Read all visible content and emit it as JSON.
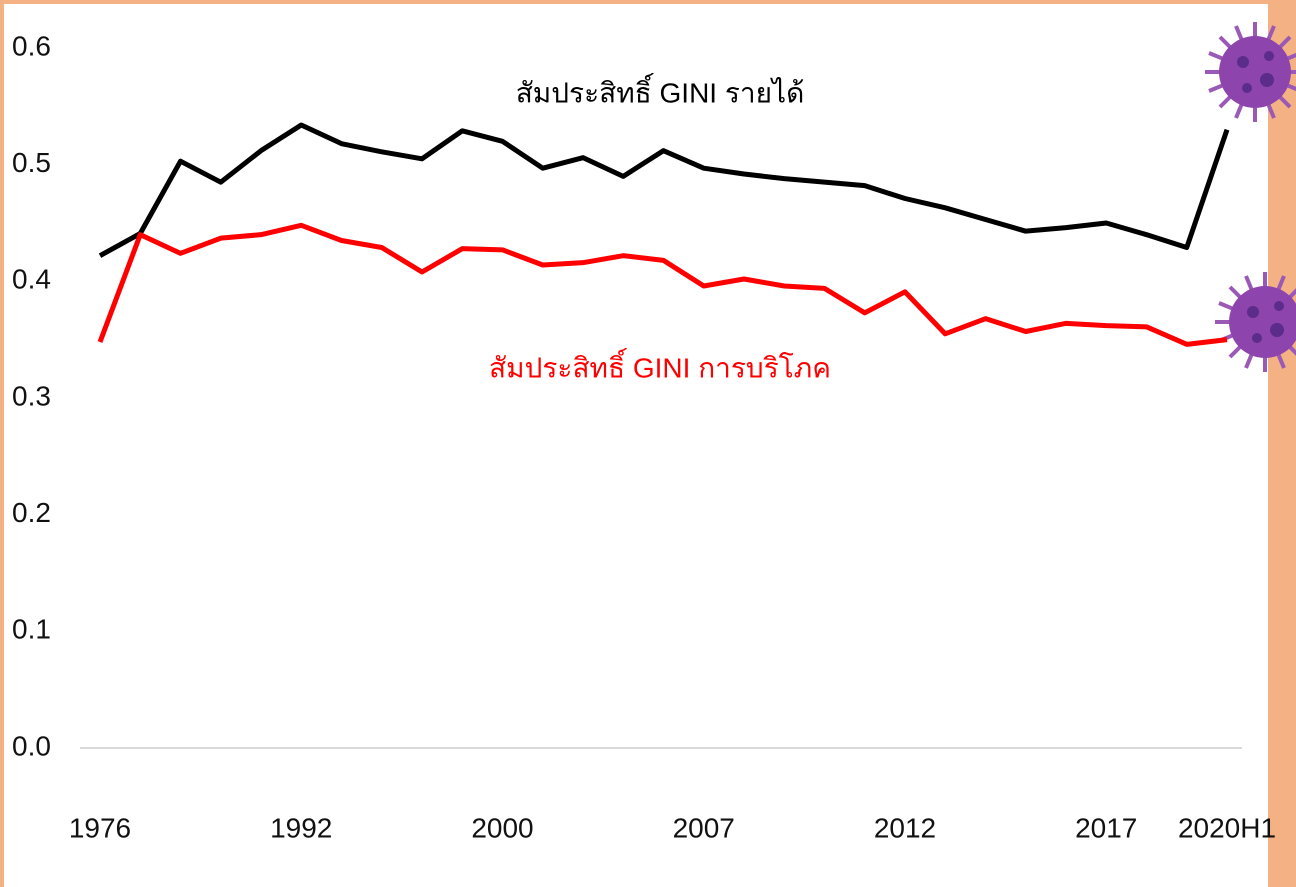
{
  "chart_data": {
    "type": "line",
    "categories": [
      "1976",
      null,
      null,
      null,
      null,
      "1992",
      null,
      null,
      null,
      null,
      "2000",
      null,
      null,
      null,
      null,
      "2007",
      null,
      null,
      null,
      null,
      "2012",
      null,
      null,
      null,
      null,
      "2017",
      null,
      null,
      "2020H1"
    ],
    "series": [
      {
        "name": "สัมประสิทธิ์ GINI รายได้",
        "color": "#000000",
        "values": [
          0.422,
          0.441,
          0.503,
          0.485,
          0.512,
          0.534,
          0.518,
          0.511,
          0.505,
          0.529,
          0.52,
          0.497,
          0.506,
          0.49,
          0.512,
          0.497,
          0.492,
          0.488,
          0.485,
          0.482,
          0.471,
          0.463,
          0.453,
          0.443,
          0.446,
          0.45,
          0.44,
          0.429,
          0.53
        ]
      },
      {
        "name": "สัมประสิทธิ์ GINI การบริโภค",
        "color": "#ff0000",
        "values": [
          0.348,
          0.44,
          0.424,
          0.437,
          0.44,
          0.448,
          0.435,
          0.429,
          0.408,
          0.428,
          0.427,
          0.414,
          0.416,
          0.422,
          0.418,
          0.396,
          0.402,
          0.396,
          0.394,
          0.373,
          0.391,
          0.355,
          0.368,
          0.357,
          0.364,
          0.362,
          0.361,
          0.346,
          0.35
        ]
      }
    ],
    "ylim": [
      0,
      0.6
    ],
    "yticks": [
      {
        "value": 0,
        "label": "0.0"
      },
      0.1,
      0.2,
      0.3,
      0.4,
      0.5,
      0.6
    ]
  }
}
